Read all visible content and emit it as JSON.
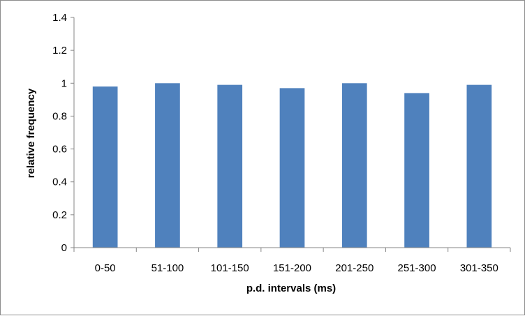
{
  "chart_data": {
    "type": "bar",
    "title": "",
    "xlabel": "p.d. intervals (ms)",
    "ylabel": "relative frequency",
    "categories": [
      "0-50",
      "51-100",
      "101-150",
      "151-200",
      "201-250",
      "251-300",
      "301-350"
    ],
    "series": [
      {
        "values": [
          0.98,
          1.0,
          0.99,
          0.97,
          1.0,
          0.94,
          0.99
        ]
      }
    ],
    "ylim": [
      0,
      1.4
    ],
    "yticks": [
      "0",
      "0.2",
      "0.4",
      "0.6",
      "0.8",
      "1",
      "1.2",
      "1.4"
    ],
    "grid": false,
    "legend": "none",
    "bar_color": "#4f81bd",
    "axis_color": "#868686"
  }
}
